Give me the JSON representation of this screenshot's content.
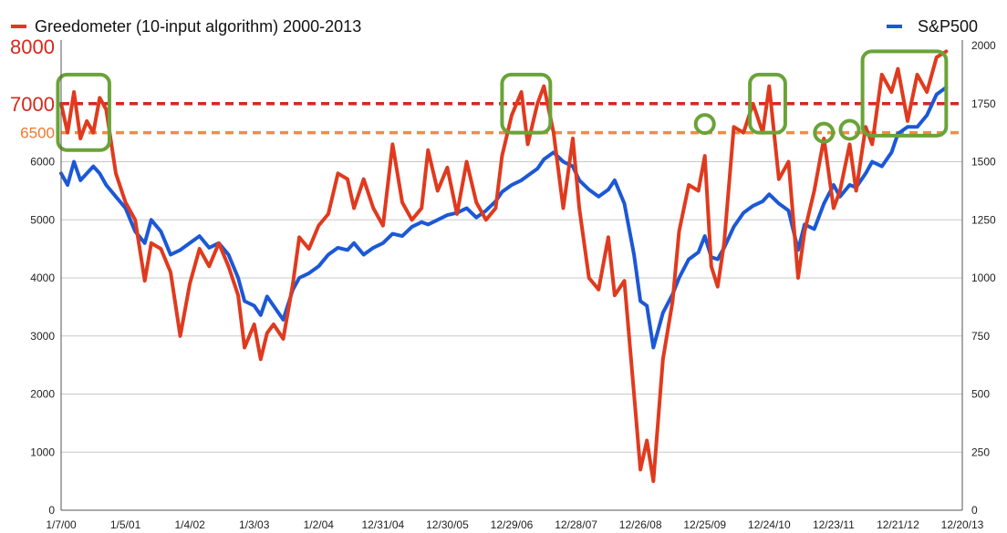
{
  "chart_data": {
    "type": "line",
    "x_ticks": [
      "1/7/00",
      "1/5/01",
      "1/4/02",
      "1/3/03",
      "1/2/04",
      "12/31/04",
      "12/30/05",
      "12/29/06",
      "12/28/07",
      "12/26/08",
      "12/25/09",
      "12/24/10",
      "12/23/11",
      "12/21/12",
      "12/20/13"
    ],
    "y_left": {
      "ylim": [
        0,
        8000
      ],
      "ticks": [
        "0",
        "1000",
        "2000",
        "3000",
        "4000",
        "5000",
        "6000",
        "6500",
        "7000",
        "8000"
      ]
    },
    "y_right": {
      "ylim": [
        0,
        2000
      ],
      "ticks": [
        "0",
        "250",
        "500",
        "750",
        "1000",
        "1250",
        "1500",
        "1750",
        "2000"
      ]
    },
    "series": [
      {
        "name": "Greedometer (10-input algorithm) 2000-2013",
        "axis": "left",
        "color": "#e03a1e",
        "points": [
          [
            0.0,
            7000
          ],
          [
            0.1,
            6500
          ],
          [
            0.2,
            7200
          ],
          [
            0.3,
            6400
          ],
          [
            0.4,
            6700
          ],
          [
            0.5,
            6500
          ],
          [
            0.6,
            7100
          ],
          [
            0.7,
            6900
          ],
          [
            0.85,
            5800
          ],
          [
            1.0,
            5300
          ],
          [
            1.15,
            5000
          ],
          [
            1.3,
            3950
          ],
          [
            1.4,
            4600
          ],
          [
            1.55,
            4500
          ],
          [
            1.7,
            4100
          ],
          [
            1.85,
            3000
          ],
          [
            2.0,
            3900
          ],
          [
            2.15,
            4500
          ],
          [
            2.3,
            4200
          ],
          [
            2.45,
            4600
          ],
          [
            2.6,
            4200
          ],
          [
            2.75,
            3700
          ],
          [
            2.85,
            2800
          ],
          [
            3.0,
            3200
          ],
          [
            3.1,
            2600
          ],
          [
            3.2,
            3050
          ],
          [
            3.3,
            3200
          ],
          [
            3.45,
            2950
          ],
          [
            3.6,
            3900
          ],
          [
            3.7,
            4700
          ],
          [
            3.85,
            4500
          ],
          [
            4.0,
            4900
          ],
          [
            4.15,
            5100
          ],
          [
            4.3,
            5800
          ],
          [
            4.45,
            5700
          ],
          [
            4.55,
            5200
          ],
          [
            4.7,
            5700
          ],
          [
            4.85,
            5200
          ],
          [
            5.0,
            4900
          ],
          [
            5.15,
            6300
          ],
          [
            5.3,
            5300
          ],
          [
            5.45,
            5000
          ],
          [
            5.6,
            5200
          ],
          [
            5.7,
            6200
          ],
          [
            5.85,
            5500
          ],
          [
            6.0,
            5900
          ],
          [
            6.15,
            5100
          ],
          [
            6.3,
            6000
          ],
          [
            6.45,
            5300
          ],
          [
            6.6,
            5000
          ],
          [
            6.75,
            5200
          ],
          [
            6.85,
            6100
          ],
          [
            7.0,
            6800
          ],
          [
            7.15,
            7200
          ],
          [
            7.25,
            6300
          ],
          [
            7.4,
            7000
          ],
          [
            7.5,
            7300
          ],
          [
            7.65,
            6500
          ],
          [
            7.8,
            5200
          ],
          [
            7.95,
            6400
          ],
          [
            8.05,
            5200
          ],
          [
            8.2,
            4000
          ],
          [
            8.35,
            3800
          ],
          [
            8.5,
            4700
          ],
          [
            8.6,
            3700
          ],
          [
            8.75,
            3950
          ],
          [
            8.9,
            2000
          ],
          [
            9.0,
            700
          ],
          [
            9.1,
            1200
          ],
          [
            9.2,
            500
          ],
          [
            9.35,
            2600
          ],
          [
            9.5,
            3600
          ],
          [
            9.6,
            4800
          ],
          [
            9.75,
            5600
          ],
          [
            9.9,
            5500
          ],
          [
            10.0,
            6100
          ],
          [
            10.1,
            4200
          ],
          [
            10.2,
            3850
          ],
          [
            10.3,
            4600
          ],
          [
            10.45,
            6600
          ],
          [
            10.6,
            6500
          ],
          [
            10.75,
            7000
          ],
          [
            10.9,
            6500
          ],
          [
            11.0,
            7300
          ],
          [
            11.15,
            5700
          ],
          [
            11.3,
            6000
          ],
          [
            11.45,
            4000
          ],
          [
            11.55,
            4800
          ],
          [
            11.7,
            5500
          ],
          [
            11.85,
            6400
          ],
          [
            12.0,
            5200
          ],
          [
            12.1,
            5500
          ],
          [
            12.25,
            6300
          ],
          [
            12.35,
            5500
          ],
          [
            12.5,
            6600
          ],
          [
            12.6,
            6300
          ],
          [
            12.75,
            7500
          ],
          [
            12.9,
            7200
          ],
          [
            13.0,
            7600
          ],
          [
            13.15,
            6700
          ],
          [
            13.3,
            7500
          ],
          [
            13.45,
            7200
          ],
          [
            13.6,
            7800
          ],
          [
            13.75,
            7900
          ]
        ]
      },
      {
        "name": "S&P500",
        "axis": "right",
        "color": "#1c58d6",
        "points": [
          [
            0.0,
            1450
          ],
          [
            0.1,
            1400
          ],
          [
            0.2,
            1500
          ],
          [
            0.3,
            1420
          ],
          [
            0.4,
            1450
          ],
          [
            0.5,
            1480
          ],
          [
            0.6,
            1450
          ],
          [
            0.7,
            1400
          ],
          [
            0.85,
            1350
          ],
          [
            1.0,
            1300
          ],
          [
            1.15,
            1200
          ],
          [
            1.3,
            1150
          ],
          [
            1.4,
            1250
          ],
          [
            1.55,
            1200
          ],
          [
            1.7,
            1100
          ],
          [
            1.85,
            1120
          ],
          [
            2.0,
            1150
          ],
          [
            2.15,
            1180
          ],
          [
            2.3,
            1130
          ],
          [
            2.45,
            1150
          ],
          [
            2.6,
            1100
          ],
          [
            2.75,
            1000
          ],
          [
            2.85,
            900
          ],
          [
            3.0,
            880
          ],
          [
            3.1,
            840
          ],
          [
            3.2,
            920
          ],
          [
            3.3,
            880
          ],
          [
            3.45,
            820
          ],
          [
            3.6,
            950
          ],
          [
            3.7,
            1000
          ],
          [
            3.85,
            1020
          ],
          [
            4.0,
            1050
          ],
          [
            4.15,
            1100
          ],
          [
            4.3,
            1130
          ],
          [
            4.45,
            1120
          ],
          [
            4.55,
            1150
          ],
          [
            4.7,
            1100
          ],
          [
            4.85,
            1130
          ],
          [
            5.0,
            1150
          ],
          [
            5.15,
            1190
          ],
          [
            5.3,
            1180
          ],
          [
            5.45,
            1220
          ],
          [
            5.6,
            1240
          ],
          [
            5.7,
            1230
          ],
          [
            5.85,
            1250
          ],
          [
            6.0,
            1270
          ],
          [
            6.15,
            1280
          ],
          [
            6.3,
            1300
          ],
          [
            6.45,
            1260
          ],
          [
            6.6,
            1290
          ],
          [
            6.75,
            1330
          ],
          [
            6.85,
            1370
          ],
          [
            7.0,
            1400
          ],
          [
            7.15,
            1420
          ],
          [
            7.25,
            1440
          ],
          [
            7.4,
            1470
          ],
          [
            7.5,
            1510
          ],
          [
            7.65,
            1540
          ],
          [
            7.8,
            1500
          ],
          [
            7.95,
            1480
          ],
          [
            8.05,
            1420
          ],
          [
            8.2,
            1380
          ],
          [
            8.35,
            1350
          ],
          [
            8.5,
            1380
          ],
          [
            8.6,
            1420
          ],
          [
            8.75,
            1320
          ],
          [
            8.9,
            1100
          ],
          [
            9.0,
            900
          ],
          [
            9.1,
            880
          ],
          [
            9.2,
            700
          ],
          [
            9.35,
            850
          ],
          [
            9.5,
            930
          ],
          [
            9.6,
            1000
          ],
          [
            9.75,
            1080
          ],
          [
            9.9,
            1110
          ],
          [
            10.0,
            1180
          ],
          [
            10.1,
            1090
          ],
          [
            10.2,
            1080
          ],
          [
            10.3,
            1130
          ],
          [
            10.45,
            1220
          ],
          [
            10.6,
            1280
          ],
          [
            10.75,
            1310
          ],
          [
            10.9,
            1330
          ],
          [
            11.0,
            1360
          ],
          [
            11.15,
            1320
          ],
          [
            11.3,
            1290
          ],
          [
            11.45,
            1120
          ],
          [
            11.55,
            1230
          ],
          [
            11.7,
            1210
          ],
          [
            11.85,
            1320
          ],
          [
            12.0,
            1400
          ],
          [
            12.1,
            1350
          ],
          [
            12.25,
            1400
          ],
          [
            12.35,
            1390
          ],
          [
            12.5,
            1450
          ],
          [
            12.6,
            1500
          ],
          [
            12.75,
            1480
          ],
          [
            12.9,
            1540
          ],
          [
            13.0,
            1620
          ],
          [
            13.15,
            1650
          ],
          [
            13.3,
            1650
          ],
          [
            13.45,
            1700
          ],
          [
            13.6,
            1790
          ],
          [
            13.75,
            1820
          ]
        ]
      }
    ],
    "reference_lines": [
      {
        "axis": "left",
        "value": 7000,
        "color": "#d6281c"
      },
      {
        "axis": "left",
        "value": 6500,
        "color": "#f5894a"
      }
    ],
    "highlights": [
      {
        "shape": "box",
        "x0": -0.05,
        "x1": 0.75,
        "y0": 6200,
        "y1": 7500
      },
      {
        "shape": "box",
        "x0": 6.85,
        "x1": 7.6,
        "y0": 6500,
        "y1": 7500
      },
      {
        "shape": "circle",
        "x": 10.0,
        "y": 6650
      },
      {
        "shape": "box",
        "x0": 10.7,
        "x1": 11.25,
        "y0": 6500,
        "y1": 7500
      },
      {
        "shape": "circle",
        "x": 11.85,
        "y": 6500
      },
      {
        "shape": "circle",
        "x": 12.25,
        "y": 6550
      },
      {
        "shape": "box",
        "x0": 12.45,
        "x1": 13.75,
        "y0": 6450,
        "y1": 7900
      }
    ],
    "grid": true,
    "legend": [
      "top-left",
      "top-right"
    ]
  }
}
